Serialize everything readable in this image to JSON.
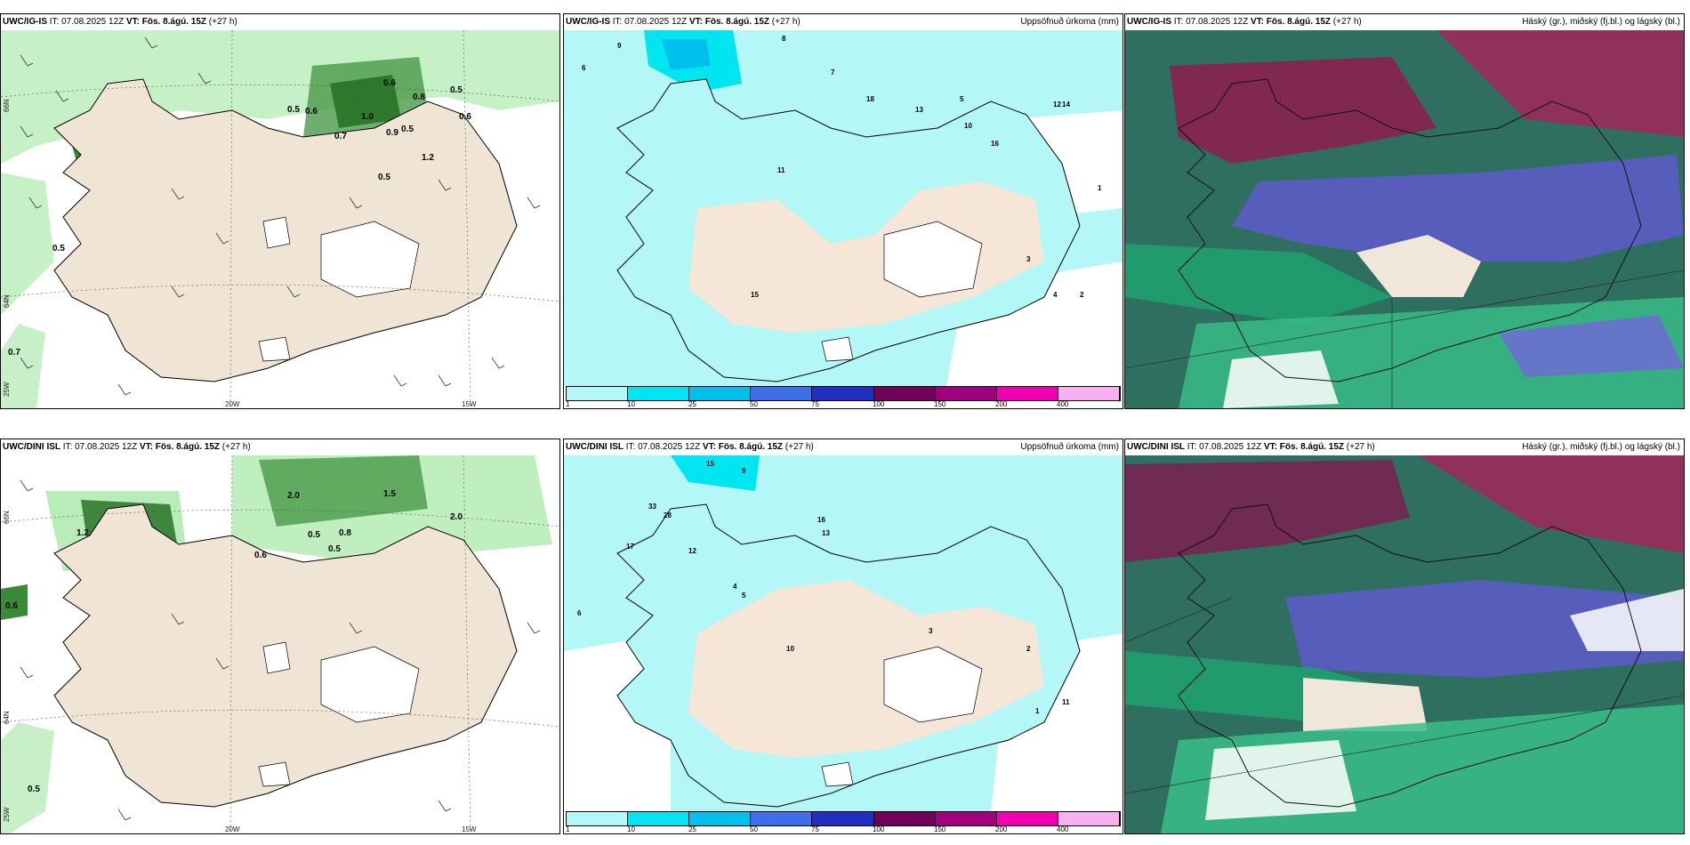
{
  "rows": [
    {
      "panels": [
        {
          "model": "UWC/IG-IS",
          "it_label": "IT:",
          "it": "07.08.2025 12Z",
          "vt_label": "VT:",
          "vt": "Fös. 8.ágú. 15Z",
          "lead": "(+27 h)",
          "right": ""
        },
        {
          "model": "UWC/IG-IS",
          "it_label": "IT:",
          "it": "07.08.2025 12Z",
          "vt_label": "VT:",
          "vt": "Fös. 8.ágú. 15Z",
          "lead": "(+27 h)",
          "right": "Uppsöfnuð úrkoma (mm)"
        },
        {
          "model": "UWC/IG-IS",
          "it_label": "IT:",
          "it": "07.08.2025 12Z",
          "vt_label": "VT:",
          "vt": "Fös. 8.ágú. 15Z",
          "lead": "(+27 h)",
          "right": "Háský (gr.), miðský (fj.bl.) og lágský (bl.)"
        }
      ]
    },
    {
      "panels": [
        {
          "model": "UWC/DINI ISL",
          "it_label": "IT:",
          "it": "07.08.2025 12Z",
          "vt_label": "VT:",
          "vt": "Fös. 8.ágú. 15Z",
          "lead": "(+27 h)",
          "right": ""
        },
        {
          "model": "UWC/DINI ISL",
          "it_label": "IT:",
          "it": "07.08.2025 12Z",
          "vt_label": "VT:",
          "vt": "Fös. 8.ágú. 15Z",
          "lead": "(+27 h)",
          "right": "Uppsöfnuð úrkoma (mm)"
        },
        {
          "model": "UWC/DINI ISL",
          "it_label": "IT:",
          "it": "07.08.2025 12Z",
          "vt_label": "VT:",
          "vt": "Fös. 8.ágú. 15Z",
          "lead": "(+27 h)",
          "right": "Háský (gr.), miðský (fj.bl.) og lágský (bl.)"
        }
      ]
    }
  ],
  "axes": {
    "lat_66": "66N",
    "lat_64": "64N",
    "lon_25": "25W",
    "lon_20": "20W",
    "lon_15": "15W"
  },
  "colorbar": {
    "ticks": [
      "1",
      "10",
      "25",
      "50",
      "75",
      "100",
      "150",
      "200",
      "400"
    ],
    "colors": [
      "#b3f7f7",
      "#00e5f0",
      "#00c0ee",
      "#3f6fe8",
      "#2030c0",
      "#700058",
      "#a00080",
      "#f000b0",
      "#f8b0f0"
    ]
  },
  "wind_labels_top": [
    "0.6",
    "0.5",
    "0.8",
    "0.5",
    "0.6",
    "1.0",
    "0.9",
    "0.7",
    "0.6",
    "0.5",
    "1.2",
    "0.5",
    "0.5",
    "0.7"
  ],
  "wind_labels_bottom": [
    "0.6",
    "0.5",
    "2.0",
    "1.5",
    "1.2",
    "0.8",
    "0.6",
    "0.5",
    "0.5",
    "2.0"
  ],
  "precip_labels_top": [
    "9",
    "8",
    "6",
    "7",
    "5",
    "10",
    "11",
    "15",
    "18",
    "13",
    "16",
    "14",
    "12",
    "3",
    "4",
    "2",
    "1"
  ],
  "precip_labels_bottom": [
    "15",
    "9",
    "33",
    "28",
    "17",
    "12",
    "16",
    "13",
    "10",
    "6",
    "5",
    "4",
    "3",
    "2",
    "1",
    "11"
  ]
}
